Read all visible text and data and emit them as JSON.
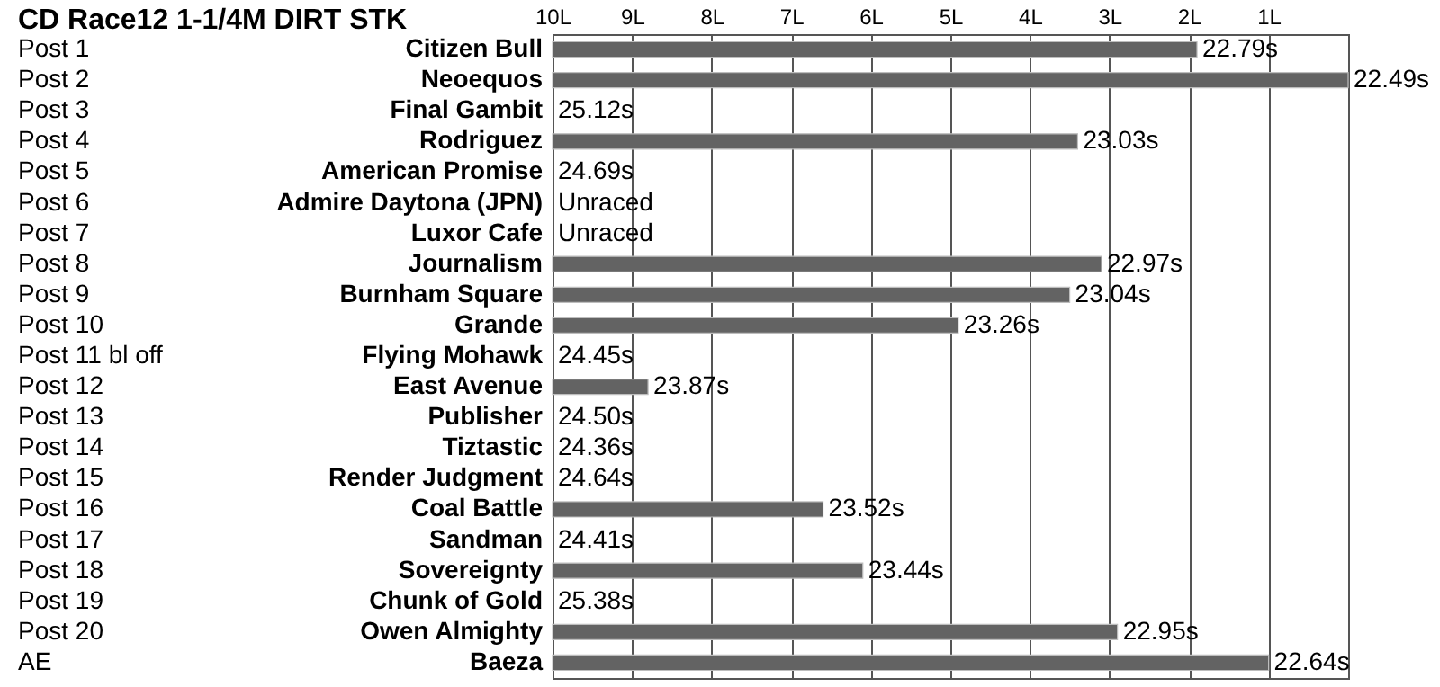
{
  "chart_data": {
    "type": "bar",
    "orientation": "horizontal",
    "title": "CD Race12 1-1/4M DIRT STK",
    "categories": [
      "Citizen Bull",
      "Neoequos",
      "Final Gambit",
      "Rodriguez",
      "American Promise",
      "Admire Daytona (JPN)",
      "Luxor Cafe",
      "Journalism",
      "Burnham Square",
      "Grande",
      "Flying Mohawk",
      "East Avenue",
      "Publisher",
      "Tiztastic",
      "Render Judgment",
      "Coal Battle",
      "Sandman",
      "Sovereignty",
      "Chunk of Gold",
      "Owen Almighty",
      "Baeza"
    ],
    "base": [
      10,
      10,
      null,
      10,
      null,
      null,
      null,
      10,
      10,
      10,
      null,
      10,
      null,
      null,
      null,
      10,
      null,
      10,
      null,
      10,
      10
    ],
    "values": [
      -8.1,
      -10,
      null,
      -6.6,
      null,
      null,
      null,
      -6.9,
      -6.5,
      -5.1,
      null,
      -1.2,
      null,
      null,
      null,
      -3.4,
      null,
      -3.9,
      null,
      -7.1,
      -9.0
    ],
    "color": "#636363",
    "xlim": [
      10,
      0
    ],
    "xticks": [
      {
        "value": 10,
        "label": "10L"
      },
      {
        "value": 9,
        "label": "9L"
      },
      {
        "value": 8,
        "label": "8L"
      },
      {
        "value": 7,
        "label": "7L"
      },
      {
        "value": 6,
        "label": "6L"
      },
      {
        "value": 5,
        "label": "5L"
      },
      {
        "value": 4,
        "label": "4L"
      },
      {
        "value": 3,
        "label": "3L"
      },
      {
        "value": 2,
        "label": "2L"
      },
      {
        "value": 1,
        "label": "1L"
      }
    ],
    "grid": "x",
    "annotations": [
      "Post 1",
      "Post 2",
      "Post 3",
      "Post 4",
      "Post 5",
      "Post 6",
      "Post 7",
      "Post 8",
      "Post 9",
      "Post 10",
      "Post 11 bl off",
      "Post 12",
      "Post 13",
      "Post 14",
      "Post 15",
      "Post 16",
      "Post 17",
      "Post 18",
      "Post 19",
      "Post 20",
      "AE",
      "25.12s",
      "24.69s",
      "Unraced",
      "Unraced",
      "24.45s",
      "24.50s",
      "24.36s",
      "24.64s",
      "24.41s",
      "25.38s",
      {
        "text": "22.79s",
        "x": 1.9,
        "y": "Citizen Bull"
      },
      {
        "text": "22.49s",
        "x": 0,
        "y": "Neoequos"
      },
      {
        "text": "23.03s",
        "x": 3.4,
        "y": "Rodriguez"
      },
      {
        "text": "22.97s",
        "x": 3.1,
        "y": "Journalism"
      },
      {
        "text": "23.04s",
        "x": 3.5,
        "y": "Burnham Square"
      },
      {
        "text": "23.26s",
        "x": 4.9,
        "y": "Grande"
      },
      {
        "text": "23.87s",
        "x": 8.8,
        "y": "East Avenue"
      },
      {
        "text": "23.52s",
        "x": 6.6,
        "y": "Coal Battle"
      },
      {
        "text": "23.44s",
        "x": 6.1,
        "y": "Sovereignty"
      },
      {
        "text": "22.95s",
        "x": 2.9,
        "y": "Owen Almighty"
      },
      {
        "text": "22.64s",
        "x": 1.0,
        "y": "Baeza"
      }
    ]
  }
}
